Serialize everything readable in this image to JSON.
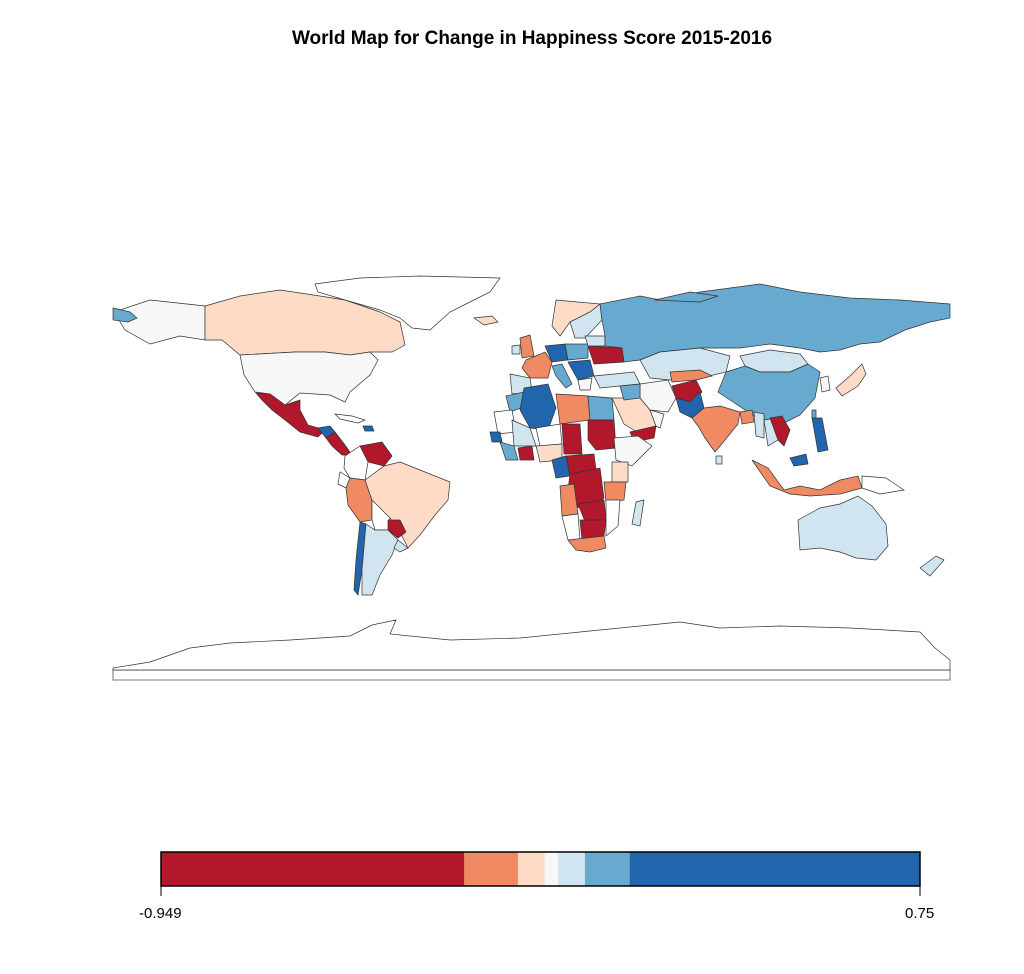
{
  "title": "World Map for Change in Happiness Score 2015-2016",
  "legend": {
    "min_label": "-0.949",
    "max_label": "0.75",
    "min_value": -0.949,
    "max_value": 0.75,
    "bins": [
      {
        "from": -0.949,
        "to": -0.27,
        "color": "#b2182b"
      },
      {
        "from": -0.27,
        "to": -0.15,
        "color": "#ef8a62"
      },
      {
        "from": -0.15,
        "to": -0.09,
        "color": "#fddbc7"
      },
      {
        "from": -0.09,
        "to": -0.06,
        "color": "#f7f7f7"
      },
      {
        "from": -0.06,
        "to": 0.0,
        "color": "#d1e5f0"
      },
      {
        "from": 0.0,
        "to": 0.1,
        "color": "#67a9cf"
      },
      {
        "from": 0.1,
        "to": 0.75,
        "color": "#2166ac"
      }
    ]
  },
  "colors": {
    "no_data": "#ffffff",
    "border": "#333333",
    "strong_neg": "#b2182b",
    "neg": "#ef8a62",
    "slight_neg": "#fddbc7",
    "neutral": "#f7f7f7",
    "slight_pos": "#d1e5f0",
    "pos": "#67a9cf",
    "strong_pos": "#2166ac"
  }
}
